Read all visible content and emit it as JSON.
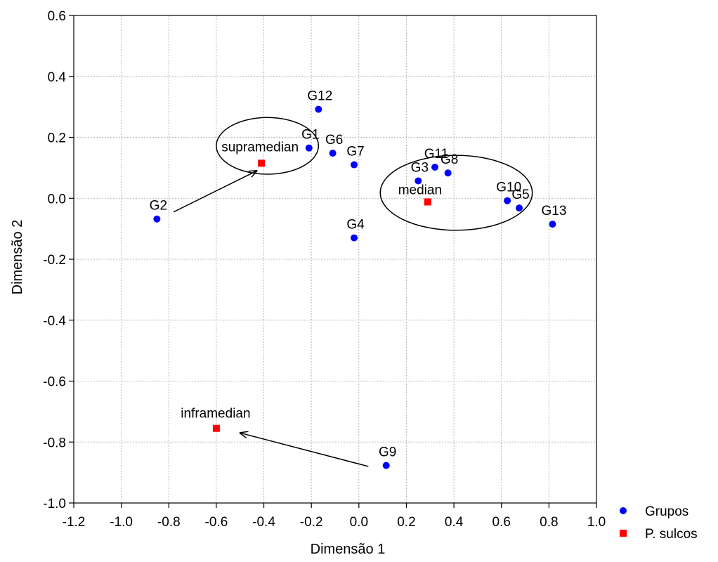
{
  "chart_data": {
    "type": "scatter",
    "xlabel": "Dimensão 1",
    "ylabel": "Dimensão 2",
    "xlim": [
      -1.2,
      1.0
    ],
    "ylim": [
      -1.0,
      0.6
    ],
    "x_ticks": [
      -1.2,
      -1.0,
      -0.8,
      -0.6,
      -0.4,
      -0.2,
      0.0,
      0.2,
      0.4,
      0.6,
      0.8,
      1.0
    ],
    "y_ticks": [
      -1.0,
      -0.8,
      -0.6,
      -0.4,
      -0.2,
      0.0,
      0.2,
      0.4,
      0.6
    ],
    "x_tick_labels": [
      "-1.2",
      "-1.0",
      "-0.8",
      "-0.6",
      "-0.4",
      "-0.2",
      "0.0",
      "0.2",
      "0.4",
      "0.6",
      "0.8",
      "1.0"
    ],
    "y_tick_labels": [
      "-1.0",
      "-0.8",
      "-0.6",
      "-0.4",
      "-0.2",
      "0.0",
      "0.2",
      "0.4",
      "0.6"
    ],
    "grid": true,
    "legend_position": "bottom-right",
    "series": [
      {
        "name": "Grupos",
        "marker": "circle",
        "color": "#0000ff",
        "points": [
          {
            "label": "G1",
            "x": -0.21,
            "y": 0.165
          },
          {
            "label": "G2",
            "x": -0.85,
            "y": -0.068
          },
          {
            "label": "G3",
            "x": 0.25,
            "y": 0.057
          },
          {
            "label": "G4",
            "x": -0.02,
            "y": -0.13
          },
          {
            "label": "G5",
            "x": 0.675,
            "y": -0.032
          },
          {
            "label": "G6",
            "x": -0.11,
            "y": 0.148
          },
          {
            "label": "G7",
            "x": -0.02,
            "y": 0.11
          },
          {
            "label": "G8",
            "x": 0.375,
            "y": 0.083
          },
          {
            "label": "G9",
            "x": 0.115,
            "y": -0.877
          },
          {
            "label": "G10",
            "x": 0.625,
            "y": -0.008
          },
          {
            "label": "G11",
            "x": 0.32,
            "y": 0.102
          },
          {
            "label": "G12",
            "x": -0.17,
            "y": 0.292
          },
          {
            "label": "G13",
            "x": 0.815,
            "y": -0.085
          }
        ]
      },
      {
        "name": "P. sulcos",
        "marker": "square",
        "color": "#ff0000",
        "points": [
          {
            "label": "supramedian",
            "x": -0.41,
            "y": 0.115
          },
          {
            "label": "median",
            "x": 0.29,
            "y": -0.012
          },
          {
            "label": "inframedian",
            "x": -0.6,
            "y": -0.755
          }
        ]
      }
    ],
    "ellipses": [
      {
        "cx": -0.385,
        "cy": 0.172,
        "rx": 0.215,
        "ry": 0.093
      },
      {
        "cx": 0.41,
        "cy": 0.018,
        "rx": 0.32,
        "ry": 0.123
      }
    ],
    "arrows": [
      {
        "from": [
          -0.78,
          -0.045
        ],
        "to": [
          -0.43,
          0.09
        ]
      },
      {
        "from": [
          0.04,
          -0.88
        ],
        "to": [
          -0.5,
          -0.77
        ]
      }
    ]
  }
}
